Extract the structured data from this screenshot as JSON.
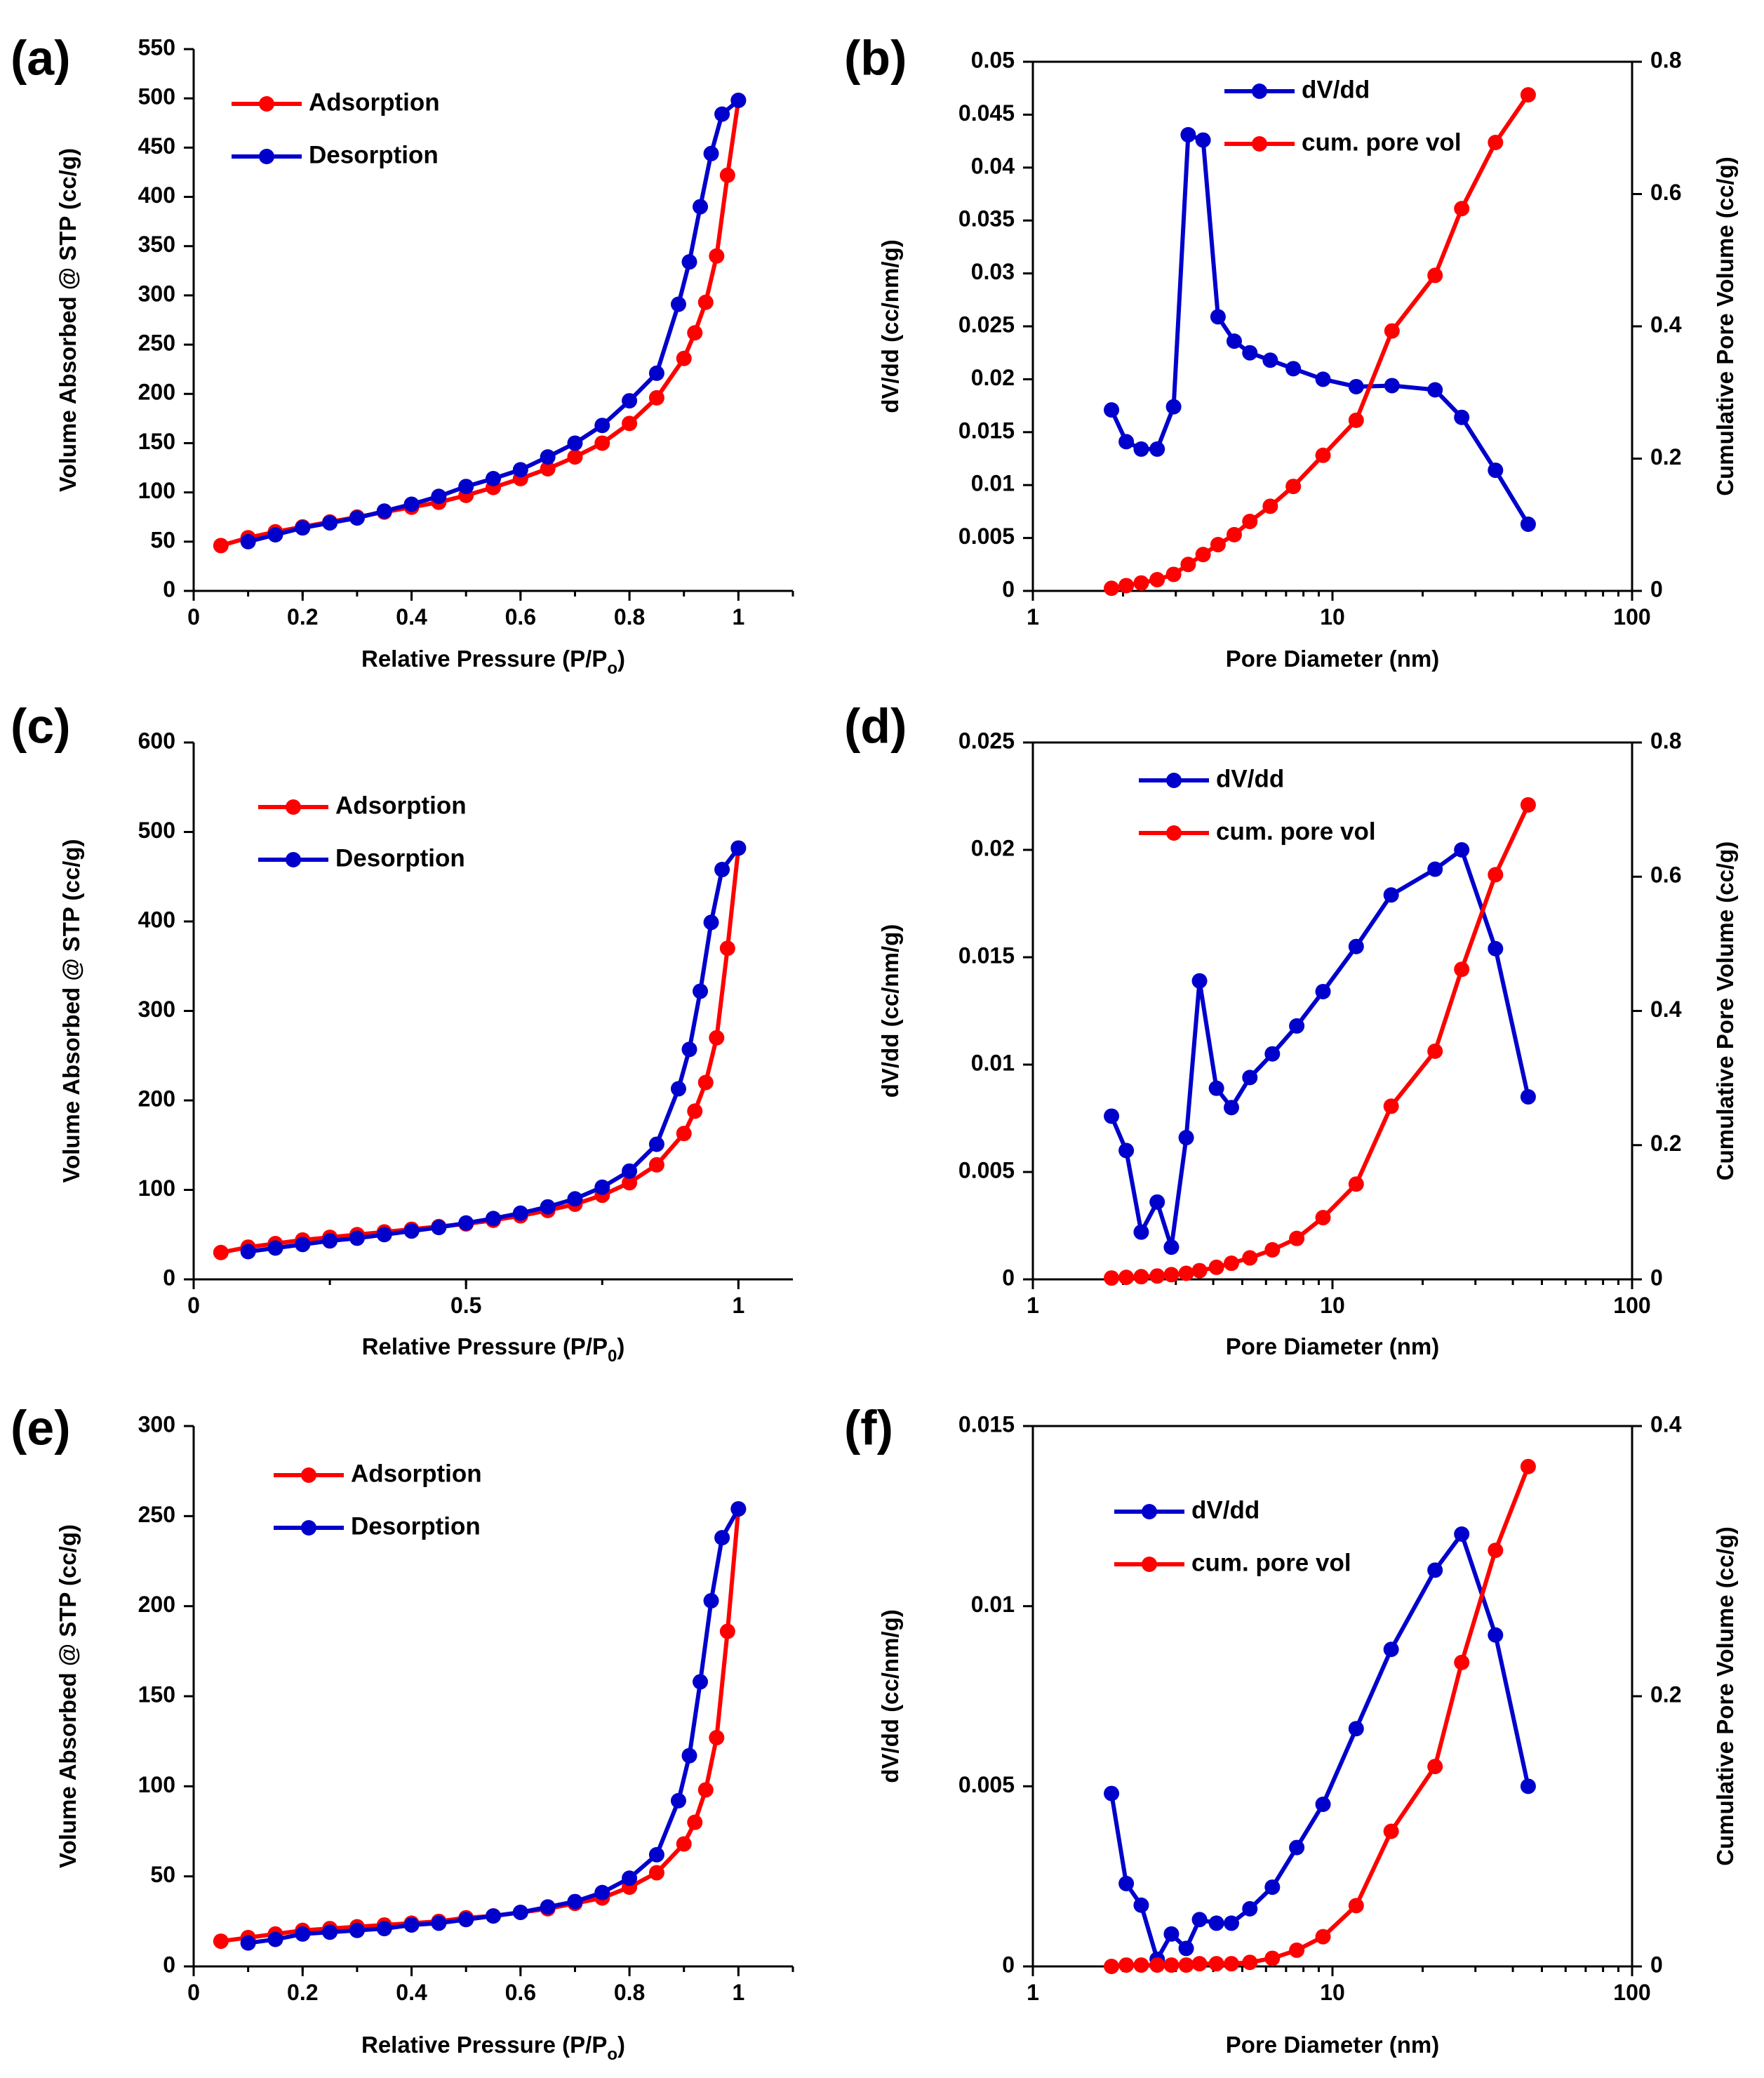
{
  "colors": {
    "red": "#ff0000",
    "blue": "#0000cc",
    "axis": "#000000"
  },
  "chart_data": [
    {
      "panel": "(a)",
      "type": "line",
      "xlabel": "Relative Pressure (P/P",
      "xlabel_sub": "o",
      "xlabel_close": ")",
      "ylabel": "Volume Absorbed @ STP (cc/g)",
      "xlim": [
        0,
        1.1
      ],
      "ylim": [
        0,
        550
      ],
      "xticks": [
        0,
        0.2,
        0.4,
        0.6,
        0.8,
        1
      ],
      "xtick_labels": [
        "0",
        "0.2",
        "0.4",
        "0.6",
        "0.8",
        "1"
      ],
      "yticks": [
        0,
        50,
        100,
        150,
        200,
        250,
        300,
        350,
        400,
        450,
        500,
        550
      ],
      "ytick_labels": [
        "0",
        "50",
        "100",
        "150",
        "200",
        "250",
        "300",
        "350",
        "400",
        "450",
        "500",
        "550"
      ],
      "legend": "top-left",
      "series": [
        {
          "name": "Adsorption",
          "color": "#ff0000",
          "x": [
            0.05,
            0.1,
            0.15,
            0.2,
            0.25,
            0.3,
            0.35,
            0.4,
            0.45,
            0.5,
            0.55,
            0.6,
            0.65,
            0.7,
            0.75,
            0.8,
            0.85,
            0.9,
            0.92,
            0.94,
            0.96,
            0.98,
            1.0
          ],
          "y": [
            46,
            54,
            60,
            65,
            70,
            75,
            80,
            85,
            90,
            97,
            105,
            114,
            124,
            136,
            150,
            170,
            196,
            236,
            262,
            293,
            340,
            422,
            498
          ]
        },
        {
          "name": "Desorption",
          "color": "#0000cc",
          "x": [
            1.0,
            0.97,
            0.95,
            0.93,
            0.91,
            0.89,
            0.85,
            0.8,
            0.75,
            0.7,
            0.65,
            0.6,
            0.55,
            0.5,
            0.45,
            0.4,
            0.35,
            0.3,
            0.25,
            0.2,
            0.15,
            0.1
          ],
          "y": [
            498,
            484,
            444,
            390,
            334,
            291,
            221,
            193,
            168,
            150,
            136,
            123,
            114,
            106,
            96,
            88,
            81,
            74,
            69,
            64,
            57,
            50
          ]
        }
      ]
    },
    {
      "panel": "(b)",
      "type": "line",
      "xscale": "log",
      "xlabel": "Pore Diameter (nm)",
      "ylabel": "dV/dd (cc/nm/g)",
      "y2label": "Cumulative Pore Volume (cc/g)",
      "xlim": [
        1,
        100
      ],
      "ylim": [
        0,
        0.05
      ],
      "y2lim": [
        0,
        0.8
      ],
      "xticks": [
        1,
        10,
        100
      ],
      "xtick_labels": [
        "1",
        "10",
        "100"
      ],
      "yticks": [
        0,
        0.005,
        0.01,
        0.015,
        0.02,
        0.025,
        0.03,
        0.035,
        0.04,
        0.045,
        0.05
      ],
      "ytick_labels": [
        "0",
        "0.005",
        "0.01",
        "0.015",
        "0.02",
        "0.025",
        "0.03",
        "0.035",
        "0.04",
        "0.045",
        "0.05"
      ],
      "y2ticks": [
        0,
        0.2,
        0.4,
        0.6,
        0.8
      ],
      "y2tick_labels": [
        "0",
        "0.2",
        "0.4",
        "0.6",
        "0.8"
      ],
      "legend": "top-center",
      "series": [
        {
          "name": "dV/dd",
          "color": "#0000cc",
          "axis": "left",
          "x": [
            1.83,
            2.05,
            2.3,
            2.6,
            2.95,
            3.3,
            3.7,
            4.15,
            4.7,
            5.3,
            6.2,
            7.4,
            9.3,
            12.0,
            15.8,
            22.0,
            27.0,
            35.0,
            45.0
          ],
          "y": [
            0.0171,
            0.0141,
            0.0134,
            0.0134,
            0.0174,
            0.0431,
            0.0426,
            0.0259,
            0.0236,
            0.0225,
            0.0218,
            0.021,
            0.02,
            0.0193,
            0.0194,
            0.019,
            0.0164,
            0.0114,
            0.0063
          ]
        },
        {
          "name": "cum. pore vol",
          "color": "#ff0000",
          "axis": "right",
          "x": [
            1.83,
            2.05,
            2.3,
            2.6,
            2.95,
            3.3,
            3.7,
            4.15,
            4.7,
            5.3,
            6.2,
            7.4,
            9.3,
            12.0,
            15.8,
            22.0,
            27.0,
            35.0,
            45.0
          ],
          "y": [
            0.004,
            0.008,
            0.012,
            0.017,
            0.025,
            0.04,
            0.055,
            0.07,
            0.085,
            0.105,
            0.128,
            0.158,
            0.205,
            0.258,
            0.393,
            0.477,
            0.578,
            0.678,
            0.75
          ]
        }
      ]
    },
    {
      "panel": "(c)",
      "type": "line",
      "xlabel": "Relative Pressure (P/P",
      "xlabel_sub": "0",
      "xlabel_close": ")",
      "ylabel": "Volume Absorbed @ STP (cc/g)",
      "xlim": [
        0,
        1.1
      ],
      "ylim": [
        0,
        600
      ],
      "xticks": [
        0,
        0.5,
        1
      ],
      "xtick_labels": [
        "0",
        "0.5",
        "1"
      ],
      "yticks": [
        0,
        100,
        200,
        300,
        400,
        500,
        600
      ],
      "ytick_labels": [
        "0",
        "100",
        "200",
        "300",
        "400",
        "500",
        "600"
      ],
      "legend": "top-left",
      "series": [
        {
          "name": "Adsorption",
          "color": "#ff0000",
          "x": [
            0.05,
            0.1,
            0.15,
            0.2,
            0.25,
            0.3,
            0.35,
            0.4,
            0.45,
            0.5,
            0.55,
            0.6,
            0.65,
            0.7,
            0.75,
            0.8,
            0.85,
            0.9,
            0.92,
            0.94,
            0.96,
            0.98,
            1.0
          ],
          "y": [
            30,
            36,
            40,
            44,
            47,
            50,
            53,
            56,
            59,
            62,
            66,
            71,
            77,
            84,
            94,
            108,
            128,
            163,
            188,
            220,
            270,
            370,
            482
          ]
        },
        {
          "name": "Desorption",
          "color": "#0000cc",
          "x": [
            1.0,
            0.97,
            0.95,
            0.93,
            0.91,
            0.89,
            0.85,
            0.8,
            0.75,
            0.7,
            0.65,
            0.6,
            0.55,
            0.5,
            0.45,
            0.4,
            0.35,
            0.3,
            0.25,
            0.2,
            0.15,
            0.1
          ],
          "y": [
            482,
            458,
            399,
            322,
            257,
            213,
            151,
            121,
            103,
            90,
            81,
            74,
            68,
            63,
            58,
            54,
            50,
            46,
            43,
            39,
            35,
            31
          ]
        }
      ]
    },
    {
      "panel": "(d)",
      "type": "line",
      "xscale": "log",
      "xlabel": "Pore Diameter (nm)",
      "ylabel": "dV/dd (cc/nm/g)",
      "y2label": "Cumulative Pore Volume (cc/g)",
      "xlim": [
        1,
        100
      ],
      "ylim": [
        0,
        0.025
      ],
      "y2lim": [
        0,
        0.8
      ],
      "xticks": [
        1,
        10,
        100
      ],
      "xtick_labels": [
        "1",
        "10",
        "100"
      ],
      "yticks": [
        0,
        0.005,
        0.01,
        0.015,
        0.02,
        0.025
      ],
      "ytick_labels": [
        "0",
        "0.005",
        "0.01",
        "0.015",
        "0.02",
        "0.025"
      ],
      "y2ticks": [
        0,
        0.2,
        0.4,
        0.6,
        0.8
      ],
      "y2tick_labels": [
        "0",
        "0.2",
        "0.4",
        "0.6",
        "0.8"
      ],
      "legend": "top-left",
      "series": [
        {
          "name": "dV/dd",
          "color": "#0000cc",
          "axis": "left",
          "x": [
            1.83,
            2.05,
            2.3,
            2.6,
            2.9,
            3.25,
            3.6,
            4.1,
            4.6,
            5.3,
            6.3,
            7.6,
            9.3,
            12.0,
            15.7,
            22.0,
            27.0,
            35.0,
            45.0
          ],
          "y": [
            0.0076,
            0.006,
            0.0022,
            0.0036,
            0.0015,
            0.0066,
            0.0139,
            0.0089,
            0.008,
            0.0094,
            0.0105,
            0.0118,
            0.0134,
            0.0155,
            0.0179,
            0.0191,
            0.02,
            0.0154,
            0.0085
          ]
        },
        {
          "name": "cum. pore vol",
          "color": "#ff0000",
          "axis": "right",
          "x": [
            1.83,
            2.05,
            2.3,
            2.6,
            2.9,
            3.25,
            3.6,
            4.1,
            4.6,
            5.3,
            6.3,
            7.6,
            9.3,
            12.0,
            15.7,
            22.0,
            27.0,
            35.0,
            45.0
          ],
          "y": [
            0.002,
            0.003,
            0.004,
            0.005,
            0.007,
            0.009,
            0.013,
            0.018,
            0.024,
            0.032,
            0.044,
            0.061,
            0.092,
            0.142,
            0.258,
            0.34,
            0.462,
            0.603,
            0.707
          ]
        }
      ]
    },
    {
      "panel": "(e)",
      "type": "line",
      "xlabel": "Relative Pressure (P/P",
      "xlabel_sub": "o",
      "xlabel_close": ")",
      "ylabel": "Volume Absorbed @ STP (cc/g)",
      "xlim": [
        0,
        1.1
      ],
      "ylim": [
        0,
        300
      ],
      "xticks": [
        0,
        0.2,
        0.4,
        0.6,
        0.8,
        1
      ],
      "xtick_labels": [
        "0",
        "0.2",
        "0.4",
        "0.6",
        "0.8",
        "1"
      ],
      "yticks": [
        0,
        50,
        100,
        150,
        200,
        250,
        300
      ],
      "ytick_labels": [
        "0",
        "50",
        "100",
        "150",
        "200",
        "250",
        "300"
      ],
      "legend": "top-left",
      "series": [
        {
          "name": "Adsorption",
          "color": "#ff0000",
          "x": [
            0.05,
            0.1,
            0.15,
            0.2,
            0.25,
            0.3,
            0.35,
            0.4,
            0.45,
            0.5,
            0.55,
            0.6,
            0.65,
            0.7,
            0.75,
            0.8,
            0.85,
            0.9,
            0.92,
            0.94,
            0.96,
            0.98,
            1.0
          ],
          "y": [
            14,
            16,
            18,
            20,
            21,
            22,
            23,
            24,
            25,
            27,
            28,
            30,
            32,
            35,
            38,
            44,
            52,
            68,
            80,
            98,
            127,
            186,
            254
          ]
        },
        {
          "name": "Desorption",
          "color": "#0000cc",
          "x": [
            1.0,
            0.97,
            0.95,
            0.93,
            0.91,
            0.89,
            0.85,
            0.8,
            0.75,
            0.7,
            0.65,
            0.6,
            0.55,
            0.5,
            0.45,
            0.4,
            0.35,
            0.3,
            0.25,
            0.2,
            0.15,
            0.1
          ],
          "y": [
            254,
            238,
            203,
            158,
            117,
            92,
            62,
            49,
            41,
            36,
            33,
            30,
            28,
            26,
            24,
            23,
            21,
            20,
            19,
            18,
            15,
            13
          ]
        }
      ]
    },
    {
      "panel": "(f)",
      "type": "line",
      "xscale": "log",
      "xlabel": "Pore Diameter (nm)",
      "ylabel": "dV/dd (cc/nm/g)",
      "y2label": "Cumulative Pore Volume (cc/g)",
      "xlim": [
        1,
        100
      ],
      "ylim": [
        0,
        0.015
      ],
      "y2lim": [
        0,
        0.4
      ],
      "xticks": [
        1,
        10,
        100
      ],
      "xtick_labels": [
        "1",
        "10",
        "100"
      ],
      "yticks": [
        0,
        0.005,
        0.01,
        0.015
      ],
      "ytick_labels": [
        "0",
        "0.005",
        "0.01",
        "0.015"
      ],
      "y2ticks": [
        0,
        0.2,
        0.4
      ],
      "y2tick_labels": [
        "0",
        "0.2",
        "0.4"
      ],
      "legend": "top-left",
      "series": [
        {
          "name": "dV/dd",
          "color": "#0000cc",
          "axis": "left",
          "x": [
            1.83,
            2.05,
            2.3,
            2.6,
            2.9,
            3.25,
            3.6,
            4.1,
            4.6,
            5.3,
            6.3,
            7.6,
            9.3,
            12.0,
            15.7,
            22.0,
            27.0,
            35.0,
            45.0
          ],
          "y": [
            0.0048,
            0.0023,
            0.0017,
            0.0002,
            0.0009,
            0.0005,
            0.0013,
            0.0012,
            0.0012,
            0.0016,
            0.0022,
            0.0033,
            0.0045,
            0.0066,
            0.0088,
            0.011,
            0.012,
            0.0092,
            0.005
          ]
        },
        {
          "name": "cum. pore vol",
          "color": "#ff0000",
          "axis": "right",
          "x": [
            1.83,
            2.05,
            2.3,
            2.6,
            2.9,
            3.25,
            3.6,
            4.1,
            4.6,
            5.3,
            6.3,
            7.6,
            9.3,
            12.0,
            15.7,
            22.0,
            27.0,
            35.0,
            45.0
          ],
          "y": [
            0.0,
            0.001,
            0.001,
            0.001,
            0.001,
            0.001,
            0.002,
            0.002,
            0.002,
            0.003,
            0.006,
            0.012,
            0.022,
            0.045,
            0.1,
            0.148,
            0.225,
            0.308,
            0.37
          ]
        }
      ]
    }
  ]
}
